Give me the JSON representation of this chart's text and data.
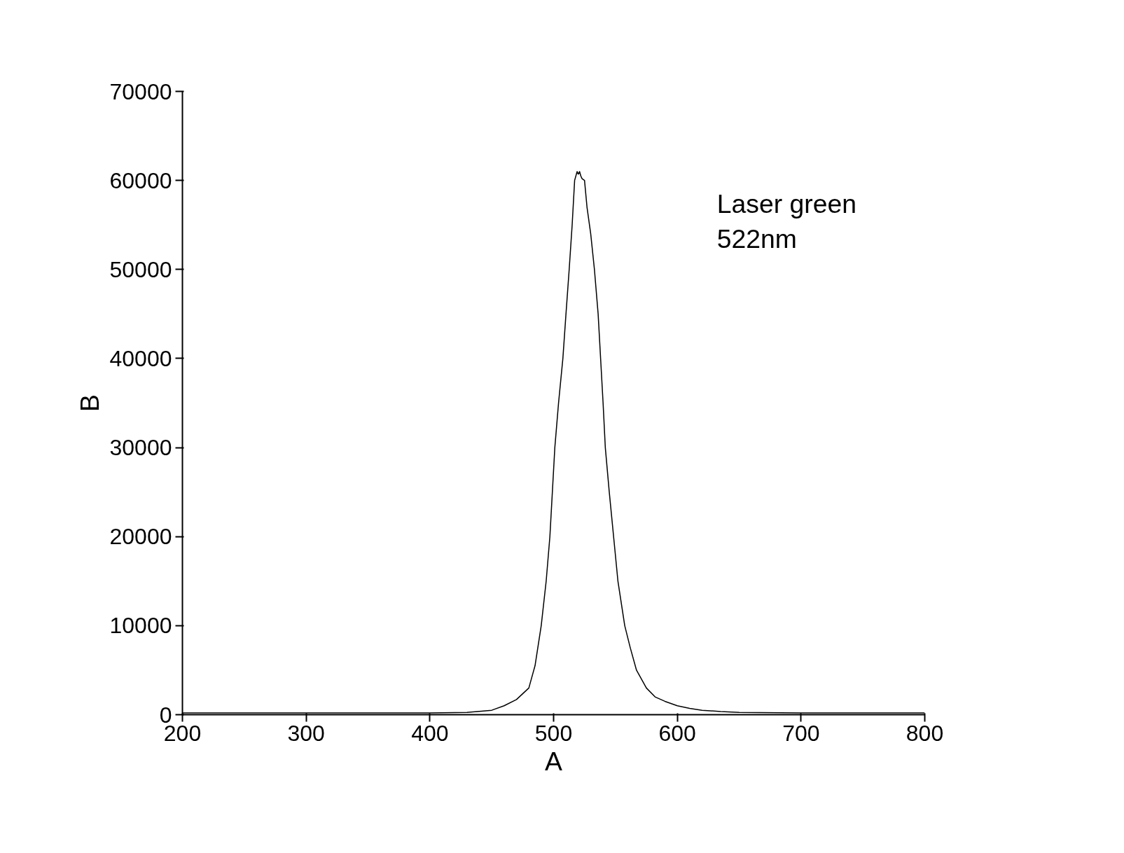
{
  "chart_data": {
    "type": "line",
    "xlabel": "A",
    "ylabel": "B",
    "annotations": [
      "Laser green\n522nm"
    ],
    "x": [
      200,
      300,
      400,
      430,
      450,
      460,
      470,
      480,
      485,
      490,
      494,
      497,
      501,
      504,
      507.5,
      510,
      512.6,
      515,
      517,
      519,
      520,
      521,
      522,
      523,
      525,
      527,
      530,
      533,
      536,
      538,
      540,
      541.8,
      545,
      548.5,
      552,
      557.5,
      562,
      567,
      575,
      582,
      590,
      600,
      610,
      620,
      635,
      650,
      700,
      750,
      800
    ],
    "series": [
      {
        "color": "#000000",
        "values": [
          200,
          200,
          200,
          250,
          500,
          1000,
          1700,
          3000,
          5500,
          10000,
          15000,
          20000,
          30000,
          35000,
          40000,
          45000,
          50000,
          55000,
          60000,
          61000,
          60700,
          61000,
          60500,
          60200,
          60000,
          57000,
          54000,
          50000,
          45000,
          40000,
          35000,
          30000,
          25000,
          20000,
          15000,
          10000,
          7500,
          5000,
          3000,
          2000,
          1500,
          1000,
          700,
          500,
          350,
          250,
          200,
          200,
          200
        ]
      }
    ],
    "xlim": [
      200,
      800
    ],
    "ylim": [
      0,
      70000
    ],
    "xticks": [
      200,
      300,
      400,
      500,
      600,
      700,
      800
    ],
    "yticks": [
      0,
      10000,
      20000,
      30000,
      40000,
      50000,
      60000,
      70000
    ],
    "grid": false,
    "marker": "none",
    "line_style": "solid"
  }
}
